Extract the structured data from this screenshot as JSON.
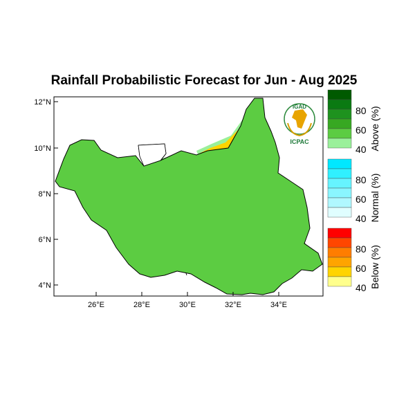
{
  "title": "Rainfall Probabilistic Forecast for Jun - Aug 2025",
  "axes": {
    "lat_ticks": [
      "12°N",
      "10°N",
      "8°N",
      "6°N",
      "4°N"
    ],
    "lon_ticks": [
      "26°E",
      "28°E",
      "30°E",
      "32°E",
      "34°E"
    ]
  },
  "logo": {
    "top_text": "IGAD",
    "bottom_text": "ICPAC"
  },
  "legend": {
    "groups": [
      {
        "label": "Above (%)",
        "ticks": [
          "80",
          "60",
          "40"
        ]
      },
      {
        "label": "Normal (%)",
        "ticks": [
          "80",
          "60",
          "40"
        ]
      },
      {
        "label": "Below (%)",
        "ticks": [
          "80",
          "60",
          "40"
        ]
      }
    ]
  },
  "colors": {
    "above": [
      "#005a00",
      "#0a7a12",
      "#1e921e",
      "#37a822",
      "#5ccc42",
      "#9af09a"
    ],
    "normal": [
      "#00e8ff",
      "#30f0ff",
      "#66f4ff",
      "#8af6ff",
      "#b0f8ff",
      "#e0feff"
    ],
    "below": [
      "#ff0000",
      "#ff4600",
      "#ff7d00",
      "#ffa400",
      "#ffd400",
      "#ffff8c"
    ],
    "dominant": "#5ccc42",
    "wet_region": "#37a822",
    "dry_region": "#ffd400"
  }
}
